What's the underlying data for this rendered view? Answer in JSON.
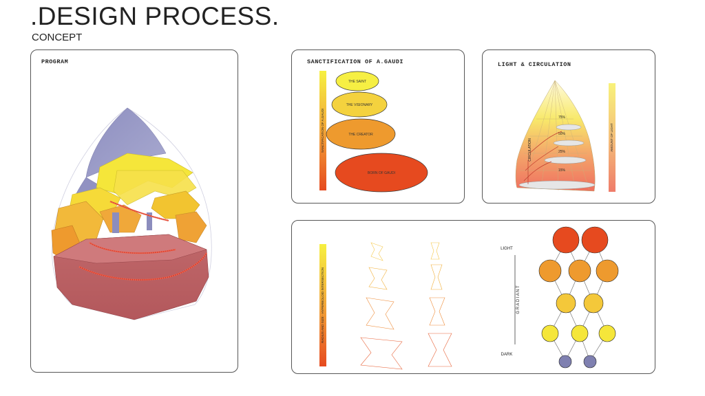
{
  "header": {
    "title": ".DESIGN PROCESS.",
    "subtitle": "CONCEPT"
  },
  "program": {
    "label": "PROGRAM"
  },
  "sanctification": {
    "label": "SANCTIFICATION OF A.GAUDI",
    "bar_label": "SANCTIFICATION OF A.GAUDI",
    "stages": [
      "THE SAINT",
      "THE VISIONARY",
      "THE CREATOR",
      "BORN OF GAUDI"
    ]
  },
  "light": {
    "label": "LIGHT  & CIRCULATION",
    "circulation_label": "CIRCULATION",
    "bar_label": "AMOUNT OF LIGHT",
    "percents": [
      "75%",
      "50%",
      "25%",
      "15%"
    ]
  },
  "gradient": {
    "bar_label": "RADIUS AND SIZE - HYPERBOLOID INTERSECTION",
    "light_label": "LIGHT",
    "dark_label": "DARK",
    "axis_label": "G R A D I A N T"
  },
  "colors": {
    "yellow": "#f5e63a",
    "orange": "#ee9a2e",
    "red": "#e64a1f",
    "purple": "#7f80b0"
  }
}
